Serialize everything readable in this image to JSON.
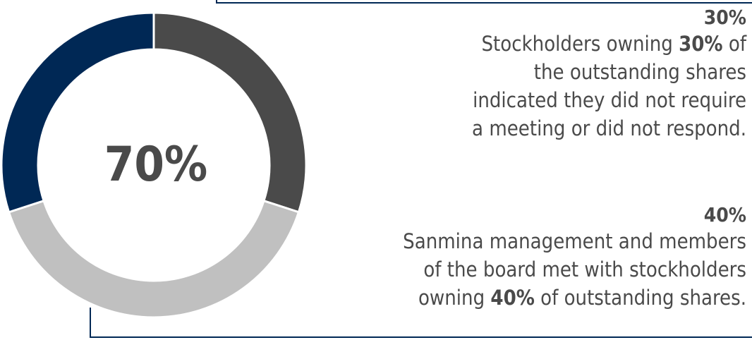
{
  "chart_data": {
    "type": "pie",
    "center_label": "70%",
    "segments": [
      {
        "label": "30%",
        "value": 30,
        "color": "#4a4a4a"
      },
      {
        "label": "40%",
        "value": 40,
        "color": "#c0c0c0"
      },
      {
        "label": "30%",
        "value": 30,
        "color": "#002855"
      }
    ]
  },
  "callouts": [
    {
      "pct": "30%",
      "desc_lines": [
        [
          "Stockholders owning ",
          "30%",
          " of"
        ],
        [
          "the outstanding shares"
        ],
        [
          "indicated they did not require"
        ],
        [
          "a meeting or did not respond."
        ]
      ]
    },
    {
      "pct": "40%",
      "desc_lines": [
        [
          "Sanmina management and members"
        ],
        [
          "of the board met with stockholders"
        ],
        [
          "owning ",
          "40%",
          " of outstanding shares."
        ]
      ]
    }
  ],
  "colors": {
    "frame": "#002855",
    "text": "#4a4a4a"
  }
}
